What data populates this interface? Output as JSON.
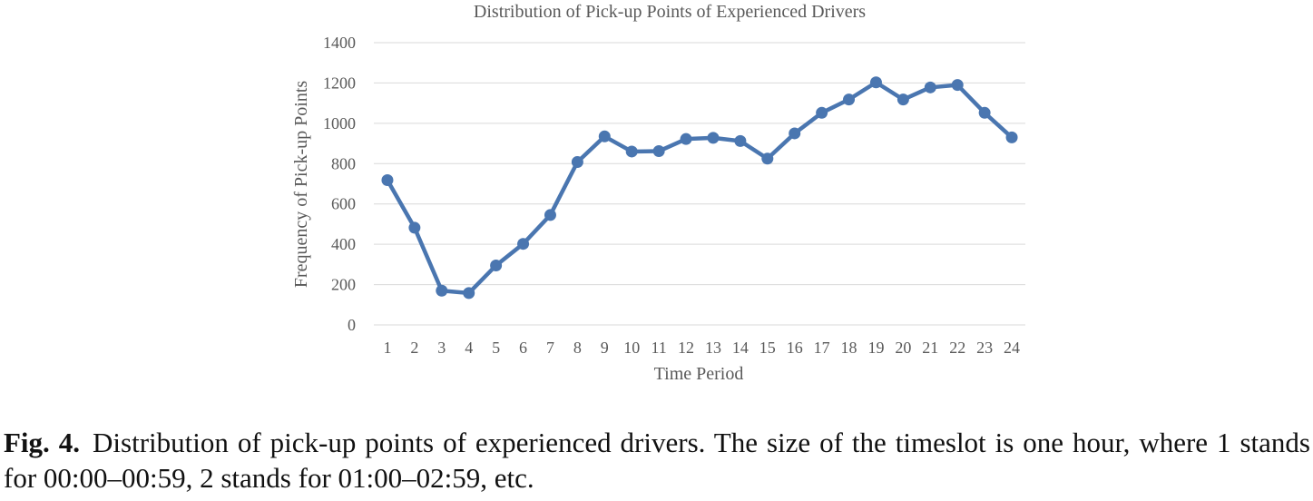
{
  "chart_data": {
    "type": "line",
    "title": "Distribution of Pick-up Points of Experienced Drivers",
    "xlabel": "Time Period",
    "ylabel": "Frequency of Pick-up Points",
    "categories": [
      "1",
      "2",
      "3",
      "4",
      "5",
      "6",
      "7",
      "8",
      "9",
      "10",
      "11",
      "12",
      "13",
      "14",
      "15",
      "16",
      "17",
      "18",
      "19",
      "20",
      "21",
      "22",
      "23",
      "24"
    ],
    "series": [
      {
        "values": [
          718,
          482,
          170,
          158,
          295,
          402,
          545,
          808,
          935,
          860,
          862,
          922,
          928,
          912,
          825,
          950,
          1052,
          1118,
          1203,
          1118,
          1178,
          1190,
          1052,
          930
        ]
      }
    ],
    "ylim": [
      0,
      1400
    ],
    "yticks": [
      0,
      200,
      400,
      600,
      800,
      1000,
      1200,
      1400
    ],
    "grid": true,
    "legend": "none",
    "line_color": "#4a76b0",
    "grid_color": "#d9d9d9",
    "text_color": "#595959"
  },
  "caption": {
    "label": "Fig. 4.",
    "text": "Distribution of pick-up points of experienced drivers. The size of the timeslot is one hour, where 1 stands for 00:00–00:59, 2 stands for 01:00–02:59, etc."
  }
}
